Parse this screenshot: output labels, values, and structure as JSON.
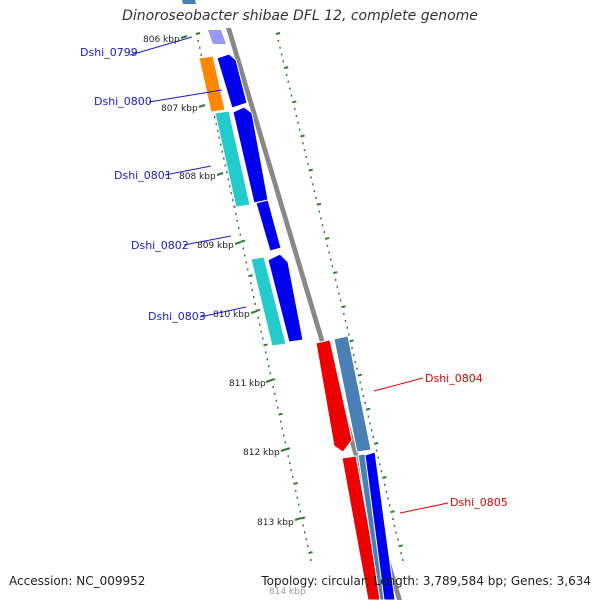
{
  "title": "Dinoroseobacter shibae DFL 12, complete genome",
  "footer": {
    "accession": "Accession: NC_009952",
    "summary": "Topology: circular; Length: 3,789,584 bp; Genes: 3,634"
  },
  "kbp_ticks": [
    "806 kbp",
    "807 kbp",
    "808 kbp",
    "809 kbp",
    "810 kbp",
    "811 kbp",
    "812 kbp",
    "813 kbp",
    "814 kbp"
  ],
  "gene_labels_left": [
    "Dshi_0799",
    "Dshi_0800",
    "Dshi_0801",
    "Dshi_0802",
    "Dshi_0803"
  ],
  "gene_labels_right": [
    "Dshi_0804",
    "Dshi_0805"
  ],
  "colors": {
    "left_label": "#1a1acc",
    "right_label": "#dd0000",
    "cds_blue": "#0000ee",
    "cds_cyan": "#22cccc",
    "cds_orange": "#ff8800",
    "cds_red": "#ee0000",
    "cds_steel": "#4a7fb5",
    "backbone": "#888888",
    "tick_green": "#2e7d2e"
  }
}
